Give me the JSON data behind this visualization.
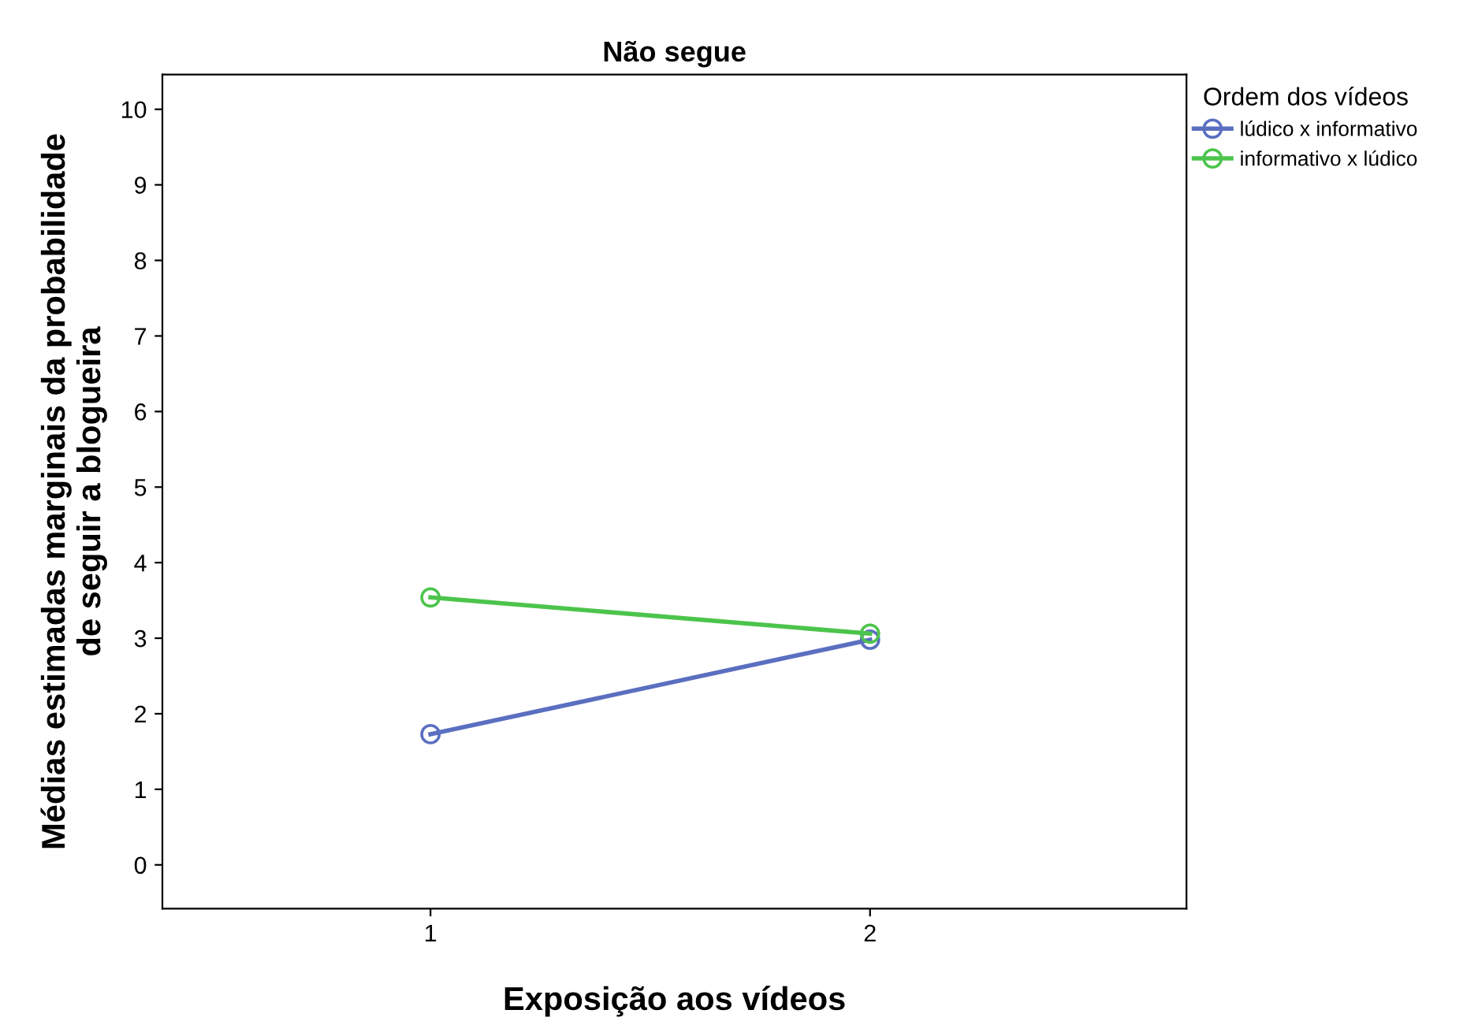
{
  "chart_data": {
    "type": "line",
    "title": "Não segue",
    "xlabel": "Exposição aos vídeos",
    "ylabel": "Médias estimadas marginais da probabilidade\nde seguir a blogueira",
    "legend_title": "Ordem dos vídeos",
    "x": [
      1,
      2
    ],
    "xlim": [
      0.39,
      2.72
    ],
    "xticks": [
      1,
      2
    ],
    "ylim": [
      -0.58,
      10.46
    ],
    "yticks": [
      0,
      1,
      2,
      3,
      4,
      5,
      6,
      7,
      8,
      9,
      10
    ],
    "series": [
      {
        "name": "lúdico x informativo",
        "color": "#5a6fc0",
        "values": [
          1.73,
          2.98
        ]
      },
      {
        "name": "informativo x lúdico",
        "color": "#4cc44c",
        "values": [
          3.54,
          3.06
        ]
      }
    ],
    "marker": "circle",
    "line_style": "solid",
    "grid": false,
    "legend": "top right"
  }
}
